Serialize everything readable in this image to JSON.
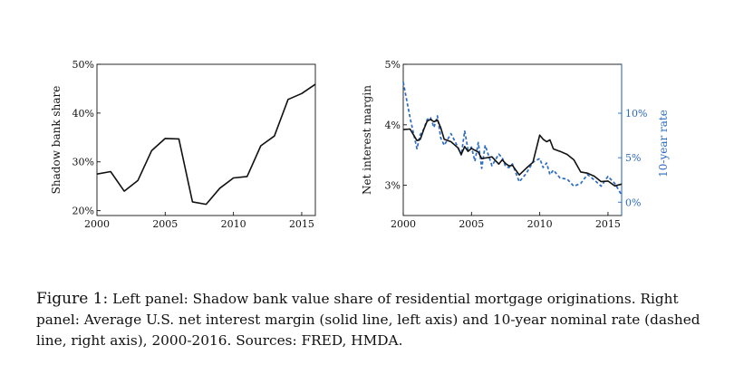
{
  "chart_data": [
    {
      "type": "line",
      "x": [
        2000,
        2001,
        2002,
        2003,
        2004,
        2005,
        2006,
        2007,
        2008,
        2009,
        2010,
        2011,
        2012,
        2013,
        2014,
        2015,
        2016
      ],
      "series": [
        {
          "values": [
            27.5,
            28.0,
            24.0,
            26.2,
            32.3,
            34.8,
            34.7,
            21.8,
            21.3,
            24.6,
            26.7,
            27.0,
            33.3,
            35.3,
            42.8,
            44.0,
            45.9
          ]
        }
      ],
      "xlabel": "",
      "ylabel": "Shadow bank share",
      "xticks": [
        "2000",
        "2005",
        "2010",
        "2015"
      ],
      "yticks": [
        "20%",
        "30%",
        "40%",
        "50%"
      ],
      "xlim": [
        2000,
        2016
      ],
      "ylim": [
        19,
        50
      ],
      "grid": false
    },
    {
      "type": "line",
      "x": [
        2000,
        2000.5,
        2001,
        2001.25,
        2001.5,
        2001.75,
        2002,
        2002.25,
        2002.5,
        2002.75,
        2003,
        2003.5,
        2004,
        2004.25,
        2004.5,
        2004.75,
        2005,
        2005.25,
        2005.5,
        2005.75,
        2006,
        2006.5,
        2007,
        2007.25,
        2007.5,
        2007.75,
        2008,
        2008.5,
        2009,
        2009.5,
        2010,
        2010.25,
        2010.5,
        2010.75,
        2011,
        2011.5,
        2012,
        2012.5,
        2013,
        2013.5,
        2014,
        2014.5,
        2015,
        2015.5,
        2016
      ],
      "series": [
        {
          "axis": "left",
          "style": "solid",
          "values": [
            3.92,
            3.93,
            3.74,
            3.76,
            3.92,
            4.06,
            4.09,
            4.05,
            4.08,
            3.95,
            3.76,
            3.72,
            3.62,
            3.51,
            3.64,
            3.56,
            3.61,
            3.58,
            3.55,
            3.44,
            3.45,
            3.47,
            3.35,
            3.42,
            3.36,
            3.32,
            3.33,
            3.17,
            3.28,
            3.38,
            3.83,
            3.76,
            3.72,
            3.75,
            3.6,
            3.56,
            3.51,
            3.42,
            3.22,
            3.2,
            3.15,
            3.06,
            3.07,
            2.99,
            3.02
          ]
        },
        {
          "axis": "right",
          "style": "dashed",
          "values": [
            13.5,
            9.5,
            6.0,
            7.6,
            8.2,
            9.3,
            9.5,
            8.4,
            9.7,
            7.2,
            6.4,
            7.7,
            6.2,
            5.3,
            8.0,
            5.9,
            6.2,
            4.6,
            6.7,
            3.8,
            6.4,
            4.1,
            5.4,
            5.0,
            4.0,
            3.9,
            4.3,
            2.3,
            3.2,
            4.5,
            4.9,
            3.9,
            4.4,
            3.1,
            3.6,
            2.7,
            2.6,
            1.8,
            2.1,
            3.1,
            2.5,
            1.8,
            2.9,
            2.1,
            0.8
          ]
        }
      ],
      "xlabel": "",
      "ylabel": "Net interest margin",
      "y2label": "10-year rate",
      "xticks": [
        "2000",
        "2005",
        "2010",
        "2015"
      ],
      "yticks": [
        "3%",
        "4%",
        "5%"
      ],
      "y2ticks": [
        "0%",
        "5%",
        "10%"
      ],
      "xlim": [
        2000,
        2016
      ],
      "ylim": [
        2.5,
        5.0
      ],
      "y2lim": [
        -1.5,
        15.5
      ],
      "grid": false,
      "colors": {
        "left": "#111111",
        "right": "#2c6bc2"
      }
    }
  ],
  "caption": {
    "label": "Figure 1:",
    "text": "Left panel: Shadow bank value share of residential mortgage originations. Right panel: Average U.S. net interest margin (solid line, left axis) and 10-year nominal rate (dashed line, right axis), 2000-2016. Sources: FRED, HMDA."
  }
}
